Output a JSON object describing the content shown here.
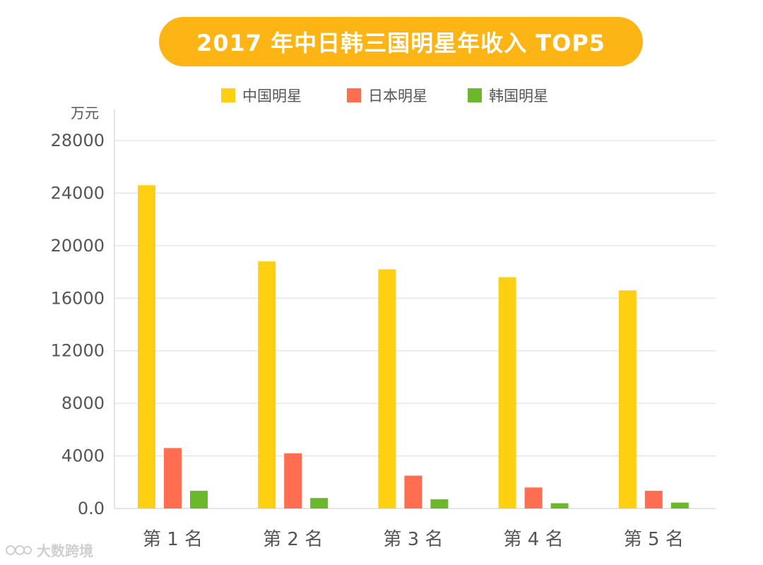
{
  "title": "2017 年中日韩三国明星年收入 TOP5",
  "unit": "万元",
  "watermark": "大数跨境",
  "chart_data": {
    "type": "bar",
    "title": "2017 年中日韩三国明星年收入 TOP5",
    "ylabel": "万元",
    "xlabel": "",
    "categories": [
      "第 1 名",
      "第 2 名",
      "第 3 名",
      "第 4 名",
      "第 5 名"
    ],
    "series": [
      {
        "name": "中国明星",
        "color": "#FFD012",
        "values": [
          24600,
          18800,
          18200,
          17600,
          16600
        ]
      },
      {
        "name": "日本明星",
        "color": "#FF6E50",
        "values": [
          4600,
          4200,
          2500,
          1600,
          1350
        ]
      },
      {
        "name": "韩国明星",
        "color": "#6BB82A",
        "values": [
          1350,
          800,
          700,
          400,
          450
        ]
      }
    ],
    "ylim": [
      0,
      28000
    ],
    "yticks": [
      "0.0",
      "4000",
      "8000",
      "12000",
      "16000",
      "20000",
      "24000",
      "28000"
    ],
    "grid": true,
    "legend_position": "top"
  }
}
